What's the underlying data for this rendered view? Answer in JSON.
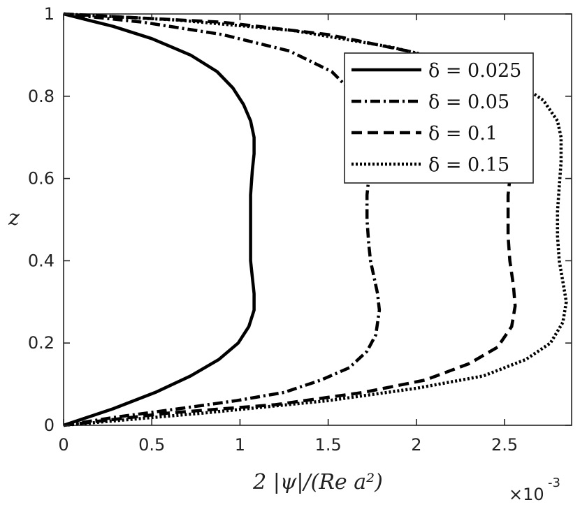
{
  "chart_data": {
    "type": "line",
    "title": "",
    "xlabel": "2 |ψ|/(Re a²)",
    "ylabel": "z",
    "x_exponent_label": "×10",
    "x_exponent_power": "-3",
    "xlim": [
      0,
      2.88
    ],
    "ylim": [
      0,
      1
    ],
    "xticks": [
      0,
      0.5,
      1,
      1.5,
      2,
      2.5
    ],
    "xtick_labels": [
      "0",
      "0.5",
      "1",
      "1.5",
      "2",
      "2.5"
    ],
    "yticks": [
      0,
      0.2,
      0.4,
      0.6,
      0.8,
      1
    ],
    "ytick_labels": [
      "0",
      "0.2",
      "0.4",
      "0.6",
      "0.8",
      "1"
    ],
    "grid": false,
    "legend_position": "top-right",
    "series": [
      {
        "name": "δ = 0.025",
        "style": "solid",
        "points": [
          [
            0,
            0
          ],
          [
            0.28,
            0.04
          ],
          [
            0.52,
            0.08
          ],
          [
            0.72,
            0.12
          ],
          [
            0.88,
            0.16
          ],
          [
            0.99,
            0.2
          ],
          [
            1.05,
            0.24
          ],
          [
            1.08,
            0.28
          ],
          [
            1.08,
            0.32
          ],
          [
            1.07,
            0.36
          ],
          [
            1.06,
            0.4
          ],
          [
            1.06,
            0.44
          ],
          [
            1.06,
            0.5
          ],
          [
            1.06,
            0.56
          ],
          [
            1.07,
            0.62
          ],
          [
            1.08,
            0.66
          ],
          [
            1.08,
            0.7
          ],
          [
            1.06,
            0.74
          ],
          [
            1.02,
            0.78
          ],
          [
            0.96,
            0.82
          ],
          [
            0.87,
            0.86
          ],
          [
            0.72,
            0.9
          ],
          [
            0.5,
            0.94
          ],
          [
            0.28,
            0.97
          ],
          [
            0,
            1
          ]
        ]
      },
      {
        "name": "δ = 0.05",
        "style": "dashdot",
        "points": [
          [
            0,
            0
          ],
          [
            0.3,
            0.02
          ],
          [
            0.65,
            0.04
          ],
          [
            0.98,
            0.06
          ],
          [
            1.25,
            0.08
          ],
          [
            1.46,
            0.11
          ],
          [
            1.62,
            0.14
          ],
          [
            1.72,
            0.18
          ],
          [
            1.77,
            0.22
          ],
          [
            1.79,
            0.28
          ],
          [
            1.78,
            0.32
          ],
          [
            1.76,
            0.36
          ],
          [
            1.74,
            0.4
          ],
          [
            1.73,
            0.44
          ],
          [
            1.72,
            0.5
          ],
          [
            1.72,
            0.56
          ],
          [
            1.73,
            0.6
          ],
          [
            1.74,
            0.64
          ],
          [
            1.74,
            0.7
          ],
          [
            1.72,
            0.74
          ],
          [
            1.66,
            0.8
          ],
          [
            1.52,
            0.86
          ],
          [
            1.28,
            0.91
          ],
          [
            0.9,
            0.95
          ],
          [
            0.45,
            0.98
          ],
          [
            0,
            1
          ]
        ]
      },
      {
        "name": "δ = 0.1",
        "style": "dashed",
        "points": [
          [
            0,
            0
          ],
          [
            0.6,
            0.03
          ],
          [
            1.2,
            0.05
          ],
          [
            1.7,
            0.08
          ],
          [
            2.05,
            0.11
          ],
          [
            2.3,
            0.15
          ],
          [
            2.46,
            0.19
          ],
          [
            2.54,
            0.24
          ],
          [
            2.56,
            0.29
          ],
          [
            2.55,
            0.34
          ],
          [
            2.53,
            0.4
          ],
          [
            2.52,
            0.46
          ],
          [
            2.52,
            0.52
          ],
          [
            2.52,
            0.56
          ],
          [
            2.53,
            0.6
          ],
          [
            2.53,
            0.64
          ],
          [
            2.52,
            0.7
          ],
          [
            2.5,
            0.76
          ],
          [
            2.42,
            0.82
          ],
          [
            2.25,
            0.87
          ],
          [
            1.95,
            0.91
          ],
          [
            1.5,
            0.95
          ],
          [
            0.9,
            0.98
          ],
          [
            0,
            1
          ]
        ]
      },
      {
        "name": "δ = 0.15",
        "style": "dotted",
        "points": [
          [
            0,
            0
          ],
          [
            0.8,
            0.03
          ],
          [
            1.5,
            0.06
          ],
          [
            2.0,
            0.09
          ],
          [
            2.38,
            0.12
          ],
          [
            2.62,
            0.16
          ],
          [
            2.76,
            0.2
          ],
          [
            2.83,
            0.25
          ],
          [
            2.85,
            0.3
          ],
          [
            2.83,
            0.35
          ],
          [
            2.81,
            0.4
          ],
          [
            2.8,
            0.46
          ],
          [
            2.8,
            0.52
          ],
          [
            2.81,
            0.58
          ],
          [
            2.82,
            0.64
          ],
          [
            2.82,
            0.7
          ],
          [
            2.8,
            0.74
          ],
          [
            2.72,
            0.79
          ],
          [
            2.55,
            0.84
          ],
          [
            2.25,
            0.88
          ],
          [
            1.85,
            0.92
          ],
          [
            1.3,
            0.96
          ],
          [
            0.65,
            0.985
          ],
          [
            0,
            1
          ]
        ]
      }
    ]
  }
}
